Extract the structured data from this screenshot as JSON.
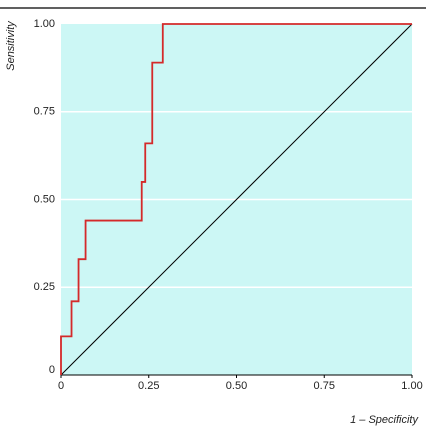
{
  "chart_data": {
    "type": "line",
    "x_label": "1 – Specificity",
    "y_label": "Sensitivity",
    "xlim": [
      0,
      1
    ],
    "ylim": [
      0,
      1
    ],
    "xticks": [
      0,
      0.25,
      {
        "value": 0.5,
        "label": "0.50"
      },
      0.75,
      {
        "value": 1,
        "label": "1.00"
      }
    ],
    "yticks": [
      0,
      0.25,
      {
        "value": 0.5,
        "label": "0.50"
      },
      0.75,
      {
        "value": 1,
        "label": "1.00"
      }
    ],
    "grid": true,
    "background": "#ccf7f5",
    "series": [
      {
        "color": "#d42a2a",
        "x": [
          0,
          0,
          0.03,
          0.03,
          0.05,
          0.05,
          0.07,
          0.07,
          0.23,
          0.23,
          0.24,
          0.24,
          0.26,
          0.26,
          0.29,
          0.29,
          1
        ],
        "values": [
          0,
          0.11,
          0.11,
          0.21,
          0.21,
          0.33,
          0.33,
          0.44,
          0.44,
          0.55,
          0.55,
          0.66,
          0.66,
          0.89,
          0.89,
          1,
          1
        ]
      },
      {
        "color": "#000000",
        "x": [
          0,
          1
        ],
        "values": [
          0,
          1
        ]
      }
    ]
  }
}
